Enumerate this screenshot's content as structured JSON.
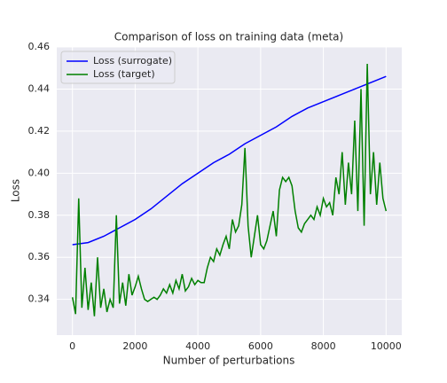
{
  "chart_data": {
    "type": "line",
    "title": "Comparison of loss on training data (meta)",
    "xlabel": "Number of perturbations",
    "ylabel": "Loss",
    "xlim": [
      -500,
      10500
    ],
    "ylim": [
      0.323,
      0.46
    ],
    "xticks": [
      0,
      2000,
      4000,
      6000,
      8000,
      10000
    ],
    "yticks": [
      0.34,
      0.36,
      0.38,
      {
        "value": 0.4,
        "label": "0.40"
      },
      0.42,
      0.44,
      0.46
    ],
    "grid": true,
    "legend": "upper left",
    "series": [
      {
        "name": "Loss (surrogate)",
        "color": "#0000ff",
        "x": [
          0,
          500,
          1000,
          1500,
          2000,
          2500,
          3000,
          3500,
          4000,
          4500,
          5000,
          5500,
          6000,
          6500,
          7000,
          7500,
          8000,
          8500,
          9000,
          9500,
          10000
        ],
        "values": [
          0.366,
          0.367,
          0.37,
          0.374,
          0.378,
          0.383,
          0.389,
          0.395,
          0.4,
          0.405,
          0.409,
          0.414,
          0.418,
          0.422,
          0.427,
          0.431,
          0.434,
          0.437,
          0.44,
          0.443,
          0.446
        ]
      },
      {
        "name": "Loss (target)",
        "color": "#008000",
        "x": [
          0,
          100,
          200,
          300,
          400,
          500,
          600,
          700,
          800,
          900,
          1000,
          1100,
          1200,
          1300,
          1400,
          1500,
          1600,
          1700,
          1800,
          1900,
          2000,
          2100,
          2200,
          2300,
          2400,
          2500,
          2600,
          2700,
          2800,
          2900,
          3000,
          3100,
          3200,
          3300,
          3400,
          3500,
          3600,
          3700,
          3800,
          3900,
          4000,
          4100,
          4200,
          4300,
          4400,
          4500,
          4600,
          4700,
          4800,
          4900,
          5000,
          5100,
          5200,
          5300,
          5400,
          5500,
          5600,
          5700,
          5800,
          5900,
          6000,
          6100,
          6200,
          6300,
          6400,
          6500,
          6600,
          6700,
          6800,
          6900,
          7000,
          7100,
          7200,
          7300,
          7400,
          7500,
          7600,
          7700,
          7800,
          7900,
          8000,
          8100,
          8200,
          8300,
          8400,
          8500,
          8600,
          8700,
          8800,
          8900,
          9000,
          9100,
          9200,
          9300,
          9400,
          9500,
          9600,
          9700,
          9800,
          9900,
          10000
        ],
        "values": [
          0.341,
          0.333,
          0.388,
          0.336,
          0.355,
          0.335,
          0.348,
          0.332,
          0.36,
          0.336,
          0.345,
          0.334,
          0.34,
          0.336,
          0.38,
          0.338,
          0.348,
          0.337,
          0.352,
          0.342,
          0.346,
          0.351,
          0.345,
          0.34,
          0.339,
          0.34,
          0.341,
          0.34,
          0.342,
          0.345,
          0.343,
          0.347,
          0.343,
          0.349,
          0.345,
          0.352,
          0.344,
          0.346,
          0.35,
          0.347,
          0.349,
          0.348,
          0.348,
          0.355,
          0.36,
          0.358,
          0.364,
          0.361,
          0.366,
          0.37,
          0.364,
          0.378,
          0.372,
          0.375,
          0.385,
          0.412,
          0.375,
          0.36,
          0.37,
          0.38,
          0.366,
          0.364,
          0.368,
          0.375,
          0.382,
          0.37,
          0.392,
          0.398,
          0.396,
          0.398,
          0.394,
          0.382,
          0.374,
          0.372,
          0.376,
          0.378,
          0.38,
          0.378,
          0.384,
          0.38,
          0.388,
          0.384,
          0.386,
          0.38,
          0.398,
          0.39,
          0.41,
          0.385,
          0.405,
          0.39,
          0.425,
          0.382,
          0.44,
          0.375,
          0.452,
          0.39,
          0.41,
          0.385,
          0.405,
          0.388,
          0.382
        ]
      }
    ]
  }
}
